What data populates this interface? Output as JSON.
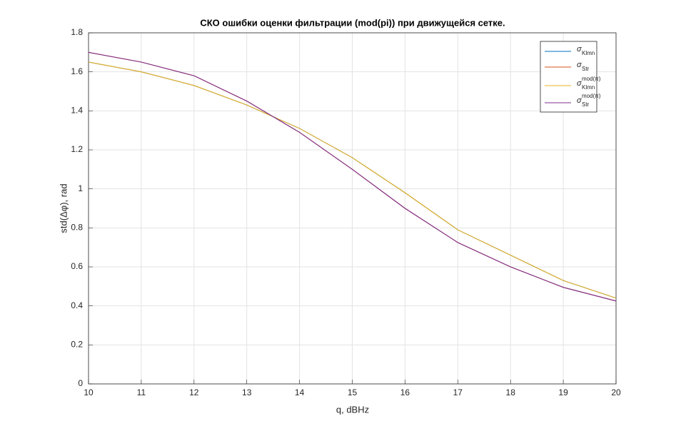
{
  "chart_data": {
    "type": "line",
    "title": "СКО ошибки оценки фильтрации (mod(pi)) при движущейся сетке.",
    "x_label": "q, dBHz",
    "y_label": "std(Δφ), rad",
    "x": [
      10,
      11,
      12,
      13,
      14,
      15,
      16,
      17,
      18,
      19,
      20
    ],
    "series": [
      {
        "name": "σ",
        "subscript": "Klmn",
        "color": "#0072bd",
        "values": [
          1.65,
          1.6,
          1.53,
          1.43,
          1.31,
          1.16,
          0.98,
          0.79,
          0.66,
          0.53,
          0.44
        ]
      },
      {
        "name": "σ",
        "subscript": "Str",
        "color": "#d95319",
        "values": [
          1.7,
          1.65,
          1.58,
          1.45,
          1.29,
          1.1,
          0.9,
          0.725,
          0.6,
          0.495,
          0.425
        ]
      },
      {
        "name": "σ",
        "subscript": "Klmn",
        "superscript": "mod(π)",
        "color": "#edb120",
        "values": [
          1.65,
          1.6,
          1.53,
          1.43,
          1.31,
          1.16,
          0.98,
          0.79,
          0.66,
          0.53,
          0.44
        ]
      },
      {
        "name": "σ",
        "subscript": "Str",
        "superscript": "mod(π)",
        "color": "#7e2f8e",
        "values": [
          1.7,
          1.65,
          1.58,
          1.45,
          1.29,
          1.1,
          0.9,
          0.725,
          0.6,
          0.495,
          0.425
        ]
      }
    ],
    "xlim": [
      10,
      20
    ],
    "ylim": [
      0,
      1.8
    ],
    "xticks": [
      10,
      11,
      12,
      13,
      14,
      15,
      16,
      17,
      18,
      19,
      20
    ],
    "yticks": [
      0,
      0.2,
      0.4,
      0.6,
      0.8,
      1,
      1.2,
      1.4,
      1.6,
      1.8
    ],
    "grid": true,
    "legend": "northeast"
  }
}
